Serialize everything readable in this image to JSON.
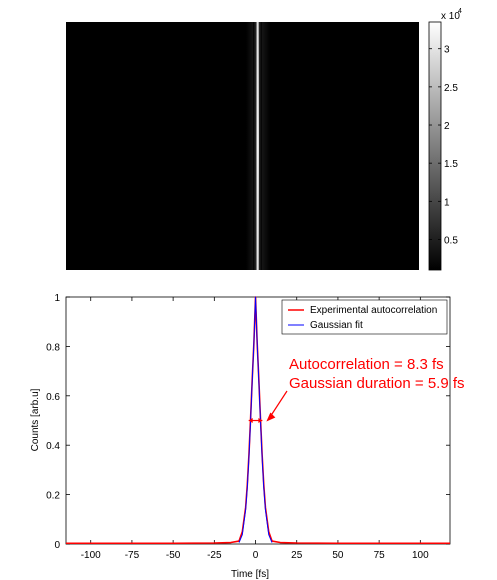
{
  "chart_data": [
    {
      "type": "heatmap",
      "description_role": "autocorrelation trace image",
      "colormap": "gray",
      "colorbar": {
        "exponent_label": "x 10",
        "exponent_power": "4",
        "ticks": [
          "3",
          "2.5",
          "2",
          "1.5",
          "1",
          "0.5"
        ],
        "tick_values": [
          3,
          2.5,
          2,
          1.5,
          1,
          0.5
        ],
        "range": [
          0.1,
          3.35
        ]
      },
      "trace": {
        "center_fraction": 0.5,
        "peak_value": 3.3
      }
    },
    {
      "type": "line",
      "xlabel": "Time [fs]",
      "ylabel": "Counts [arb.u]",
      "xlim": [
        -115,
        118
      ],
      "ylim": [
        0,
        1
      ],
      "xticks": [
        -100,
        -75,
        -50,
        -25,
        0,
        25,
        50,
        75,
        100
      ],
      "xtick_labels": [
        "-100",
        "-75",
        "-50",
        "-25",
        "0",
        "25",
        "50",
        "75",
        "100"
      ],
      "yticks": [
        0,
        0.2,
        0.4,
        0.6,
        0.8,
        1
      ],
      "ytick_labels": [
        "0",
        "0.2",
        "0.4",
        "0.6",
        "0.8",
        "1"
      ],
      "series": [
        {
          "name": "Experimental autocorrelation",
          "color": "#ff0000",
          "x": [
            -115,
            -50,
            -25,
            -15,
            -10,
            -8,
            -6,
            -5,
            -4,
            -3,
            -2,
            -1,
            0,
            1,
            2,
            3,
            4,
            5,
            6,
            8,
            10,
            15,
            25,
            50,
            118
          ],
          "y": [
            0.003,
            0.003,
            0.004,
            0.006,
            0.012,
            0.05,
            0.148,
            0.239,
            0.361,
            0.509,
            0.667,
            0.813,
            1.0,
            0.813,
            0.667,
            0.509,
            0.361,
            0.239,
            0.148,
            0.05,
            0.012,
            0.006,
            0.004,
            0.003,
            0.003
          ]
        },
        {
          "name": "Gaussian fit",
          "color": "#0000ff",
          "x": [
            -10,
            -8,
            -6,
            -5,
            -4,
            -3,
            -2,
            -1,
            0,
            1,
            2,
            3,
            4,
            5,
            6,
            8,
            10
          ],
          "y": [
            0.006,
            0.038,
            0.139,
            0.228,
            0.35,
            0.5,
            0.661,
            0.813,
            1.0,
            0.813,
            0.661,
            0.5,
            0.35,
            0.228,
            0.139,
            0.038,
            0.006
          ]
        }
      ],
      "legend": {
        "placement": "top-right"
      },
      "annotation": {
        "lines": [
          "Autocorrelation = 8.3 fs",
          "Gaussian duration = 5.9 fs"
        ],
        "color": "#ff0000",
        "fwhm_marker": {
          "x_start": -4.15,
          "x_end": 4.15,
          "y": 0.5
        }
      }
    }
  ]
}
